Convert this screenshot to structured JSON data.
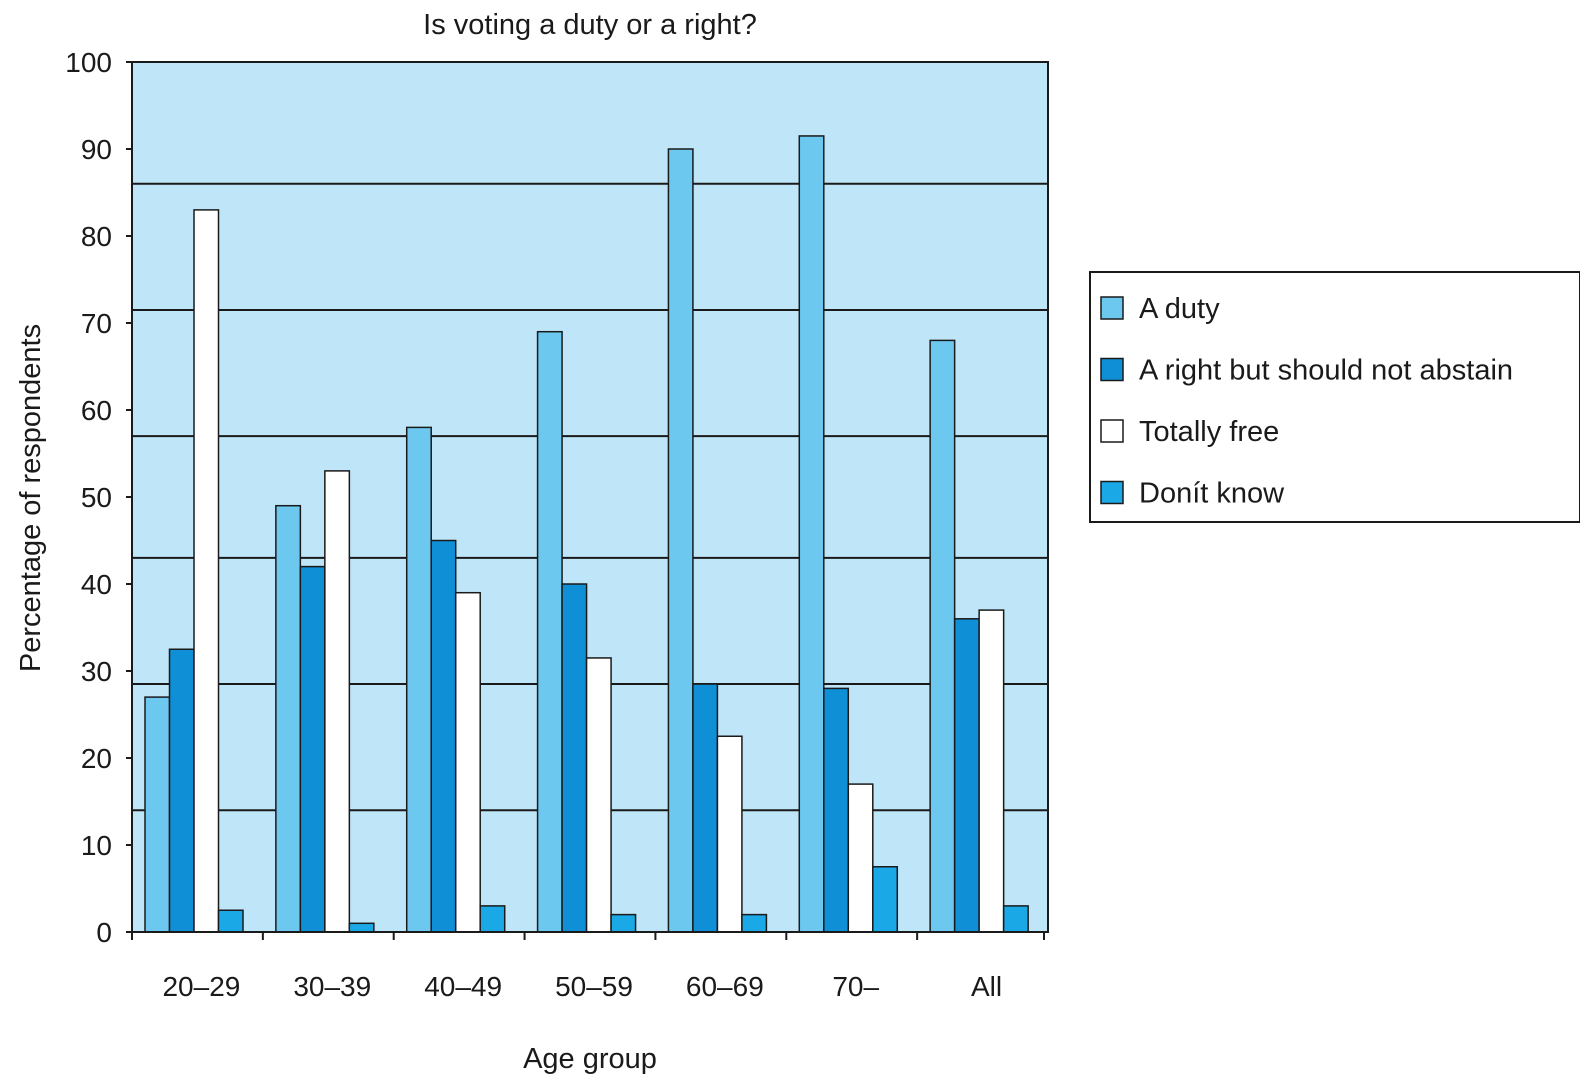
{
  "chart_data": {
    "type": "bar",
    "title": "Is voting a duty or a right?",
    "xlabel": "Age group",
    "ylabel": "Percentage of respondents",
    "ylim": [
      0,
      100
    ],
    "yticks": [
      "0",
      "10",
      "20",
      "30",
      "40",
      "50",
      "60",
      "70",
      "80",
      "90",
      "100"
    ],
    "grid": true,
    "legend_position": "right",
    "categories": [
      "20–29",
      "30–39",
      "40–49",
      "50–59",
      "60–69",
      "70–",
      "All"
    ],
    "series": [
      {
        "name": "A duty",
        "color": "#6cc8ef",
        "values": [
          27,
          49,
          58,
          69,
          90,
          91.5,
          68
        ]
      },
      {
        "name": "A right but should not abstain",
        "color": "#0f8fd6",
        "values": [
          32.5,
          42,
          45,
          40,
          28.5,
          28,
          36
        ]
      },
      {
        "name": "Totally free",
        "color": "#ffffff",
        "values": [
          83,
          53,
          39,
          31.5,
          22.5,
          17,
          37
        ]
      },
      {
        "name": "Donít know",
        "color": "#1aa9e6",
        "values": [
          2.5,
          1,
          3,
          2,
          2,
          7.5,
          3
        ]
      }
    ],
    "plot_background": "#bfe6f8"
  }
}
